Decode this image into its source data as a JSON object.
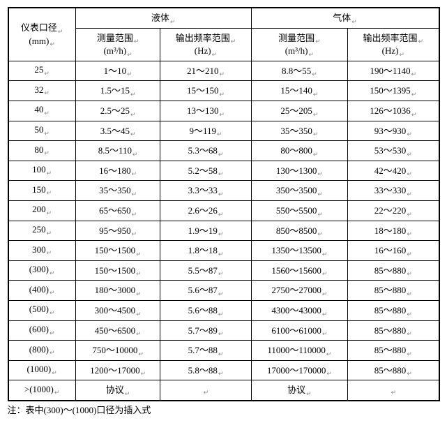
{
  "header": {
    "col1_line1": "仪表口径",
    "col1_line2": "(mm)",
    "liquid_group": "液体",
    "gas_group": "气体",
    "sub_range": "测量范围",
    "sub_range_unit": "(m³/h)",
    "sub_freq": "输出频率范围",
    "sub_freq_unit": "(Hz)"
  },
  "rows": [
    {
      "dn": "25",
      "lr": "1～10",
      "lf": "21～210",
      "gr": "8.8～55",
      "gf": "190～1140"
    },
    {
      "dn": "32",
      "lr": "1.5～15",
      "lf": "15～150",
      "gr": "15～140",
      "gf": "150～1395"
    },
    {
      "dn": "40",
      "lr": "2.5～25",
      "lf": "13～130",
      "gr": "25～205",
      "gf": "126～1036"
    },
    {
      "dn": "50",
      "lr": "3.5～45",
      "lf": "9～119",
      "gr": "35～350",
      "gf": "93～930"
    },
    {
      "dn": "80",
      "lr": "8.5～110",
      "lf": "5.3～68",
      "gr": "80～800",
      "gf": "53～530"
    },
    {
      "dn": "100",
      "lr": "16～180",
      "lf": "5.2～58",
      "gr": "130～1300",
      "gf": "42～420"
    },
    {
      "dn": "150",
      "lr": "35～350",
      "lf": "3.3～33",
      "gr": "350～3500",
      "gf": "33～330"
    },
    {
      "dn": "200",
      "lr": "65～650",
      "lf": "2.6～26",
      "gr": "550～5500",
      "gf": "22～220"
    },
    {
      "dn": "250",
      "lr": "95～950",
      "lf": "1.9～19",
      "gr": "850～8500",
      "gf": "18～180"
    },
    {
      "dn": "300",
      "lr": "150～1500",
      "lf": "1.8～18",
      "gr": "1350～13500",
      "gf": "16～160"
    },
    {
      "dn": "(300)",
      "lr": "150～1500",
      "lf": "5.5～87",
      "gr": "1560～15600",
      "gf": "85～880"
    },
    {
      "dn": "(400)",
      "lr": "180～3000",
      "lf": "5.6～87",
      "gr": "2750～27000",
      "gf": "85～880"
    },
    {
      "dn": "(500)",
      "lr": "300～4500",
      "lf": "5.6～88",
      "gr": "4300～43000",
      "gf": "85～880"
    },
    {
      "dn": "(600)",
      "lr": "450～6500",
      "lf": "5.7～89",
      "gr": "6100～61000",
      "gf": "85～880"
    },
    {
      "dn": "(800)",
      "lr": "750～10000",
      "lf": "5.7～88",
      "gr": "11000～110000",
      "gf": "85～880"
    },
    {
      "dn": "(1000)",
      "lr": "1200～17000",
      "lf": "5.8～88",
      "gr": "17000～170000",
      "gf": "85～880"
    }
  ],
  "last_row": {
    "dn": ">(1000)",
    "liquid": "协议",
    "gas": "协议"
  },
  "footnote": "注：表中(300)～(1000)口径为插入式"
}
